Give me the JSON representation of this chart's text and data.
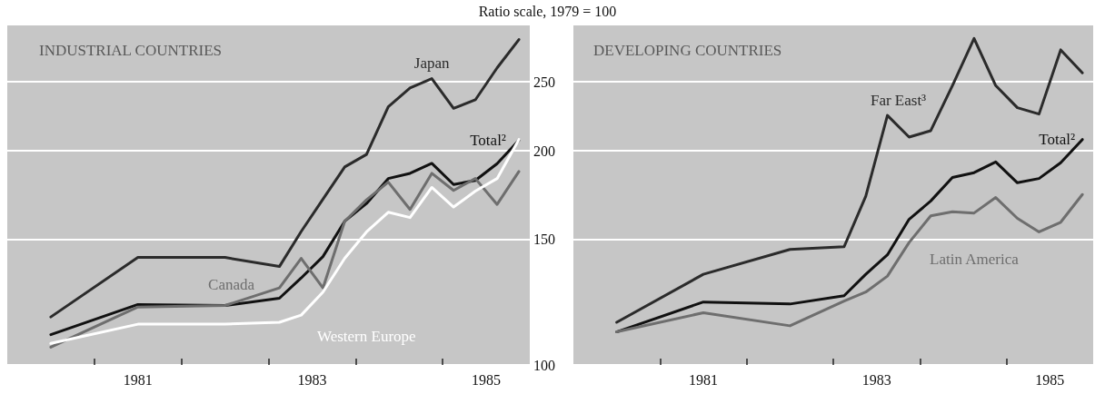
{
  "chart_data": [
    {
      "type": "line",
      "title": "INDUSTRIAL COUNTRIES",
      "ylabel": "Ratio scale, 1979 = 100",
      "log": true,
      "grid": "y",
      "marker": "none",
      "line_style": "solid",
      "x": [
        1980.5,
        1981.5,
        1982.5,
        1983.125,
        1983.375,
        1983.625,
        1983.875,
        1984.125,
        1984.375,
        1984.625,
        1984.875,
        1985.125,
        1985.375,
        1985.625,
        1985.875
      ],
      "xlim": [
        1980,
        1986
      ],
      "xticks": [
        {
          "value": 1981,
          "label": null
        },
        {
          "value": 1981.5,
          "label": "1981"
        },
        {
          "value": 1982,
          "label": null
        },
        {
          "value": 1983,
          "label": null
        },
        {
          "value": 1983.5,
          "label": "1983"
        },
        {
          "value": 1984,
          "label": null
        },
        {
          "value": 1985,
          "label": null
        },
        {
          "value": 1985.5,
          "label": "1985"
        }
      ],
      "ylim": [
        100,
        300
      ],
      "yticks": [
        100,
        150,
        200,
        250
      ],
      "series": [
        {
          "name": "Japan",
          "color": "#2b2b2b",
          "values": [
            116.8,
            141.6,
            141.6,
            137.5,
            154,
            171,
            189.8,
            197.6,
            230.5,
            245,
            252.6,
            229.4,
            235.8,
            261.5,
            286.6
          ]
        },
        {
          "name": "Total²",
          "color": "#111111",
          "values": [
            110.3,
            121.6,
            121.2,
            124.1,
            132.5,
            142,
            159.2,
            168.6,
            182.8,
            185.9,
            192,
            179.3,
            181.7,
            191.8,
            206.9
          ]
        },
        {
          "name": "Canada",
          "color": "#6e6e6e",
          "values": [
            105.9,
            120.6,
            121.2,
            128.3,
            141.2,
            128.3,
            159.2,
            170.6,
            180.7,
            165.4,
            185.9,
            175.9,
            182.8,
            168.1,
            187
          ]
        },
        {
          "name": "Western Europe",
          "color": "#ffffff",
          "values": [
            107.2,
            114.1,
            114.1,
            114.8,
            117.5,
            126.6,
            141.2,
            153.8,
            163.9,
            161.1,
            177.6,
            166.7,
            175.5,
            182.8,
            207.4
          ]
        }
      ]
    },
    {
      "type": "line",
      "title": "DEVELOPING COUNTRIES",
      "log": true,
      "grid": "y",
      "marker": "none",
      "line_style": "solid",
      "tick_labels": "x",
      "x": [
        1980.5,
        1981.5,
        1982.5,
        1983.125,
        1983.375,
        1983.625,
        1983.875,
        1984.125,
        1984.375,
        1984.625,
        1984.875,
        1985.125,
        1985.375,
        1985.625,
        1985.875
      ],
      "xlim": [
        1980,
        1986
      ],
      "xticks": [
        {
          "value": 1981,
          "label": null
        },
        {
          "value": 1981.5,
          "label": "1981"
        },
        {
          "value": 1982,
          "label": null
        },
        {
          "value": 1983,
          "label": null
        },
        {
          "value": 1983.5,
          "label": "1983"
        },
        {
          "value": 1984,
          "label": null
        },
        {
          "value": 1985,
          "label": null
        },
        {
          "value": 1985.5,
          "label": "1985"
        }
      ],
      "ylim": [
        100,
        300
      ],
      "yticks": [
        100,
        150,
        200,
        250
      ],
      "series": [
        {
          "name": "Far East³",
          "color": "#2b2b2b",
          "values": [
            114.8,
            134.1,
            145.3,
            146.6,
            172.6,
            224.2,
            209,
            213.4,
            246.9,
            287.6,
            246.9,
            229.9,
            225.2,
            277.2,
            257.3
          ]
        },
        {
          "name": "Total²",
          "color": "#111111",
          "values": [
            111.3,
            122.6,
            121.8,
            125.1,
            134.1,
            142.8,
            160.2,
            170,
            183.4,
            186.3,
            192.9,
            180.3,
            182.8,
            192.4,
            207.4
          ]
        },
        {
          "name": "Latin America",
          "color": "#6e6e6e",
          "values": [
            111.3,
            118.4,
            113.5,
            123,
            126.6,
            133.3,
            148.6,
            162,
            164.2,
            163.5,
            171.9,
            160.7,
            153.8,
            158.7,
            173.6
          ]
        }
      ]
    }
  ]
}
